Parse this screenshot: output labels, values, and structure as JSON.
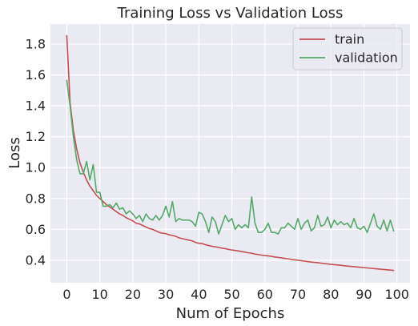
{
  "chart_data": {
    "type": "line",
    "title": "Training Loss vs Validation Loss",
    "xlabel": "Num of Epochs",
    "ylabel": "Loss",
    "xlim": [
      -4.95,
      103.95
    ],
    "ylim": [
      0.254,
      1.93
    ],
    "xticks": [
      0,
      10,
      20,
      30,
      40,
      50,
      60,
      70,
      80,
      90,
      100
    ],
    "xtick_labels": [
      "0",
      "10",
      "20",
      "30",
      "40",
      "50",
      "60",
      "70",
      "80",
      "90",
      "100"
    ],
    "yticks": [
      0.4,
      0.6,
      0.8,
      1.0,
      1.2,
      1.4,
      1.6,
      1.8
    ],
    "ytick_labels": [
      "0.4",
      "0.6",
      "0.8",
      "1.0",
      "1.2",
      "1.4",
      "1.6",
      "1.8"
    ],
    "grid": true,
    "background": "#eaeaf2",
    "legend_position": "top-right",
    "series": [
      {
        "name": "train",
        "color": "#c44e52",
        "x": [
          0,
          1,
          2,
          3,
          4,
          5,
          6,
          7,
          8,
          9,
          10,
          11,
          12,
          13,
          14,
          15,
          16,
          17,
          18,
          19,
          20,
          21,
          22,
          23,
          24,
          25,
          26,
          27,
          28,
          29,
          30,
          31,
          32,
          33,
          34,
          35,
          36,
          37,
          38,
          39,
          40,
          41,
          42,
          43,
          44,
          45,
          46,
          47,
          48,
          49,
          50,
          51,
          52,
          53,
          54,
          55,
          56,
          57,
          58,
          59,
          60,
          61,
          62,
          63,
          64,
          65,
          66,
          67,
          68,
          69,
          70,
          71,
          72,
          73,
          74,
          75,
          76,
          77,
          78,
          79,
          80,
          81,
          82,
          83,
          84,
          85,
          86,
          87,
          88,
          89,
          90,
          91,
          92,
          93,
          94,
          95,
          96,
          97,
          98,
          99
        ],
        "values": [
          1.855,
          1.42,
          1.24,
          1.12,
          1.03,
          0.97,
          0.92,
          0.88,
          0.85,
          0.82,
          0.8,
          0.78,
          0.76,
          0.745,
          0.73,
          0.715,
          0.7,
          0.69,
          0.675,
          0.665,
          0.655,
          0.64,
          0.635,
          0.625,
          0.615,
          0.605,
          0.6,
          0.59,
          0.58,
          0.575,
          0.572,
          0.565,
          0.56,
          0.555,
          0.545,
          0.54,
          0.535,
          0.53,
          0.525,
          0.515,
          0.51,
          0.508,
          0.5,
          0.495,
          0.49,
          0.487,
          0.483,
          0.478,
          0.475,
          0.47,
          0.466,
          0.463,
          0.46,
          0.456,
          0.452,
          0.448,
          0.445,
          0.44,
          0.437,
          0.433,
          0.43,
          0.428,
          0.425,
          0.421,
          0.418,
          0.415,
          0.412,
          0.409,
          0.405,
          0.402,
          0.4,
          0.397,
          0.394,
          0.391,
          0.388,
          0.386,
          0.384,
          0.381,
          0.378,
          0.376,
          0.373,
          0.371,
          0.369,
          0.367,
          0.364,
          0.362,
          0.36,
          0.358,
          0.356,
          0.354,
          0.352,
          0.35,
          0.348,
          0.346,
          0.344,
          0.342,
          0.34,
          0.338,
          0.336,
          0.334
        ]
      },
      {
        "name": "validation",
        "color": "#55a868",
        "x": [
          0,
          1,
          2,
          3,
          4,
          5,
          6,
          7,
          8,
          9,
          10,
          11,
          12,
          13,
          14,
          15,
          16,
          17,
          18,
          19,
          20,
          21,
          22,
          23,
          24,
          25,
          26,
          27,
          28,
          29,
          30,
          31,
          32,
          33,
          34,
          35,
          36,
          37,
          38,
          39,
          40,
          41,
          42,
          43,
          44,
          45,
          46,
          47,
          48,
          49,
          50,
          51,
          52,
          53,
          54,
          55,
          56,
          57,
          58,
          59,
          60,
          61,
          62,
          63,
          64,
          65,
          66,
          67,
          68,
          69,
          70,
          71,
          72,
          73,
          74,
          75,
          76,
          77,
          78,
          79,
          80,
          81,
          82,
          83,
          84,
          85,
          86,
          87,
          88,
          89,
          90,
          91,
          92,
          93,
          94,
          95,
          96,
          97,
          98,
          99
        ],
        "values": [
          1.565,
          1.4,
          1.2,
          1.05,
          0.96,
          0.96,
          1.04,
          0.92,
          1.02,
          0.84,
          0.84,
          0.75,
          0.75,
          0.76,
          0.74,
          0.77,
          0.73,
          0.74,
          0.7,
          0.72,
          0.7,
          0.67,
          0.69,
          0.65,
          0.7,
          0.67,
          0.66,
          0.69,
          0.66,
          0.69,
          0.75,
          0.68,
          0.78,
          0.65,
          0.67,
          0.66,
          0.66,
          0.66,
          0.65,
          0.62,
          0.71,
          0.7,
          0.65,
          0.58,
          0.68,
          0.65,
          0.57,
          0.63,
          0.69,
          0.65,
          0.67,
          0.6,
          0.63,
          0.61,
          0.63,
          0.61,
          0.81,
          0.64,
          0.58,
          0.58,
          0.6,
          0.64,
          0.58,
          0.58,
          0.57,
          0.61,
          0.61,
          0.64,
          0.62,
          0.6,
          0.67,
          0.6,
          0.64,
          0.66,
          0.59,
          0.61,
          0.69,
          0.62,
          0.63,
          0.68,
          0.61,
          0.66,
          0.63,
          0.65,
          0.63,
          0.64,
          0.61,
          0.67,
          0.61,
          0.6,
          0.62,
          0.58,
          0.64,
          0.7,
          0.62,
          0.6,
          0.66,
          0.59,
          0.66,
          0.59
        ]
      }
    ]
  }
}
